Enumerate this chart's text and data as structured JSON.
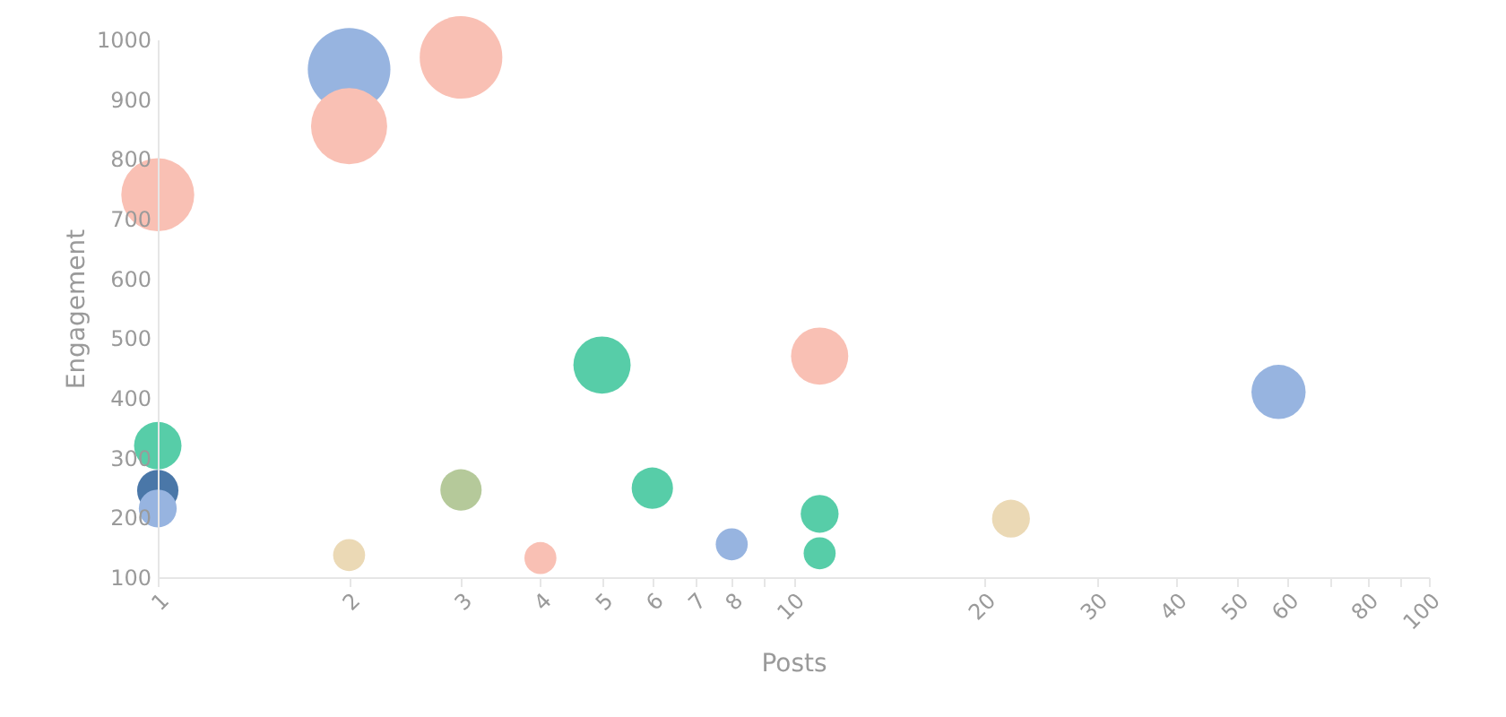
{
  "chart_data": {
    "type": "bubble",
    "xlabel": "Posts",
    "ylabel": "Engagement",
    "log": "x",
    "xlim": [
      1,
      100
    ],
    "xticks": [
      1,
      2,
      3,
      4,
      5,
      6,
      7,
      8,
      {
        "value": 9,
        "label": null
      },
      10,
      20,
      30,
      40,
      50,
      60,
      {
        "value": 70,
        "label": null
      },
      80,
      {
        "value": 90,
        "label": null
      },
      100
    ],
    "ylim": [
      100,
      1000
    ],
    "yticks": [
      100,
      200,
      300,
      400,
      500,
      600,
      700,
      800,
      900,
      1000
    ],
    "grid": false,
    "legend": false,
    "series": [
      {
        "x": [
          2,
          3,
          2,
          1,
          5,
          11,
          58,
          1,
          1,
          1,
          2,
          3,
          6,
          4,
          8,
          11,
          11,
          22
        ],
        "values": [
          950,
          970,
          855,
          740,
          455,
          470,
          410,
          320,
          245,
          215,
          137,
          246,
          249,
          132,
          155,
          206,
          140,
          198
        ],
        "sizes": [
          1,
          1,
          0.85,
          0.78,
          0.48,
          0.48,
          0.43,
          0.33,
          0.25,
          0.21,
          0.15,
          0.25,
          0.25,
          0.15,
          0.15,
          0.21,
          0.15,
          0.21
        ],
        "colors": [
          "#97b4e0",
          "#f9c0b4",
          "#f9c0b4",
          "#f9c0b4",
          "#57cda8",
          "#f9c0b4",
          "#97b4e0",
          "#57cda8",
          "#4a77a8",
          "#97b4e0",
          "#ebd9b5",
          "#b5c99a",
          "#57cda8",
          "#f9c0b4",
          "#97b4e0",
          "#57cda8",
          "#57cda8",
          "#ebd9b5"
        ]
      }
    ]
  }
}
